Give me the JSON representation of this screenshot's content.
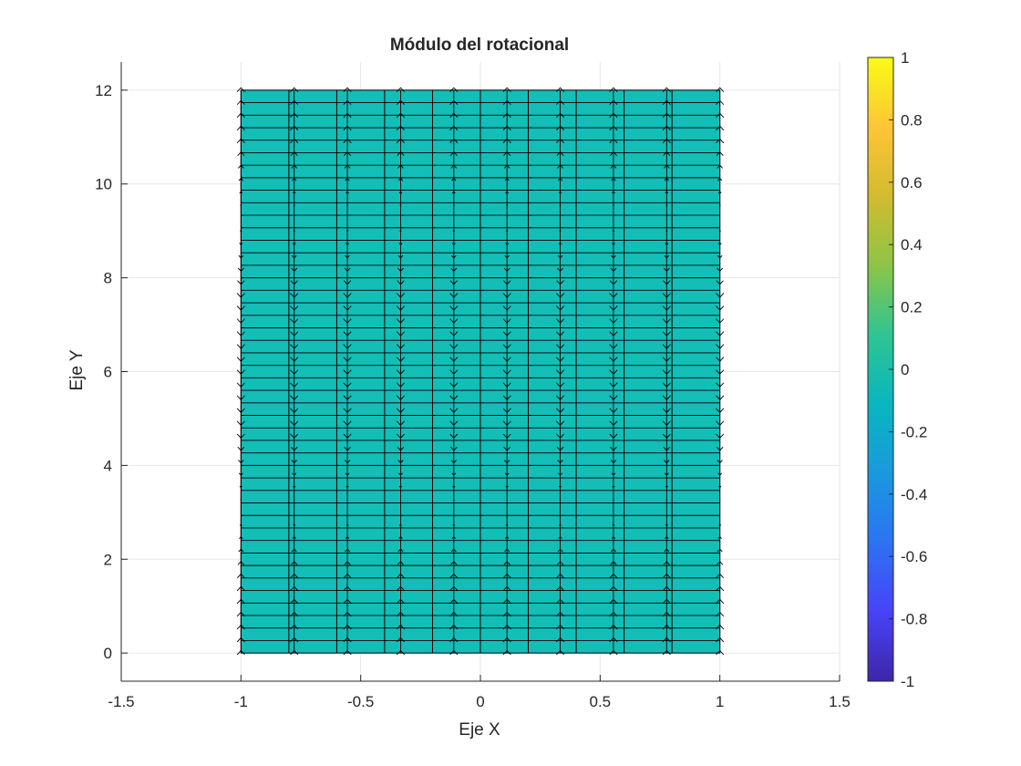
{
  "chart_data": {
    "type": "heatmap",
    "title": "Módulo del rotacional",
    "xlabel": "Eje X",
    "ylabel": "Eje Y",
    "xlim": [
      -1.5,
      1.5
    ],
    "ylim": [
      -0.6,
      12.6
    ],
    "x_ticks": [
      -1.5,
      -1,
      -0.5,
      0,
      0.5,
      1,
      1.5
    ],
    "x_tick_labels": [
      "-1.5",
      "-1",
      "-0.5",
      "0",
      "0.5",
      "1",
      "1.5"
    ],
    "y_ticks": [
      0,
      2,
      4,
      6,
      8,
      10,
      12
    ],
    "y_tick_labels": [
      "0",
      "2",
      "4",
      "6",
      "8",
      "10",
      "12"
    ],
    "grid": true,
    "surface": {
      "x_range": [
        -1,
        1
      ],
      "y_range": [
        0,
        12
      ],
      "x_columns": 10,
      "y_rows": 45,
      "value": 0,
      "color": "#13BEB7",
      "edge_color": "#000000"
    },
    "quiver": {
      "x": [
        -1,
        -0.7778,
        -0.5556,
        -0.3333,
        -0.1111,
        0.1111,
        0.3333,
        0.5556,
        0.7778,
        1
      ],
      "y_step": 0.2727,
      "y_range": [
        0,
        12
      ],
      "color": "#000000"
    },
    "colorbar": {
      "limits": [
        -1,
        1
      ],
      "ticks": [
        -1,
        -0.8,
        -0.6,
        -0.4,
        -0.2,
        0,
        0.2,
        0.4,
        0.6,
        0.8,
        1
      ],
      "tick_labels": [
        "-1",
        "-0.8",
        "-0.6",
        "-0.4",
        "-0.2",
        "0",
        "0.2",
        "0.4",
        "0.6",
        "0.8",
        "1"
      ],
      "colormap": "parula",
      "colormap_stops": [
        "#3E26A8",
        "#4743F8",
        "#2C73F2",
        "#1A99DE",
        "#09B6BF",
        "#2FC492",
        "#8CC547",
        "#D3BB2F",
        "#FEC536",
        "#F9FB15"
      ]
    }
  }
}
